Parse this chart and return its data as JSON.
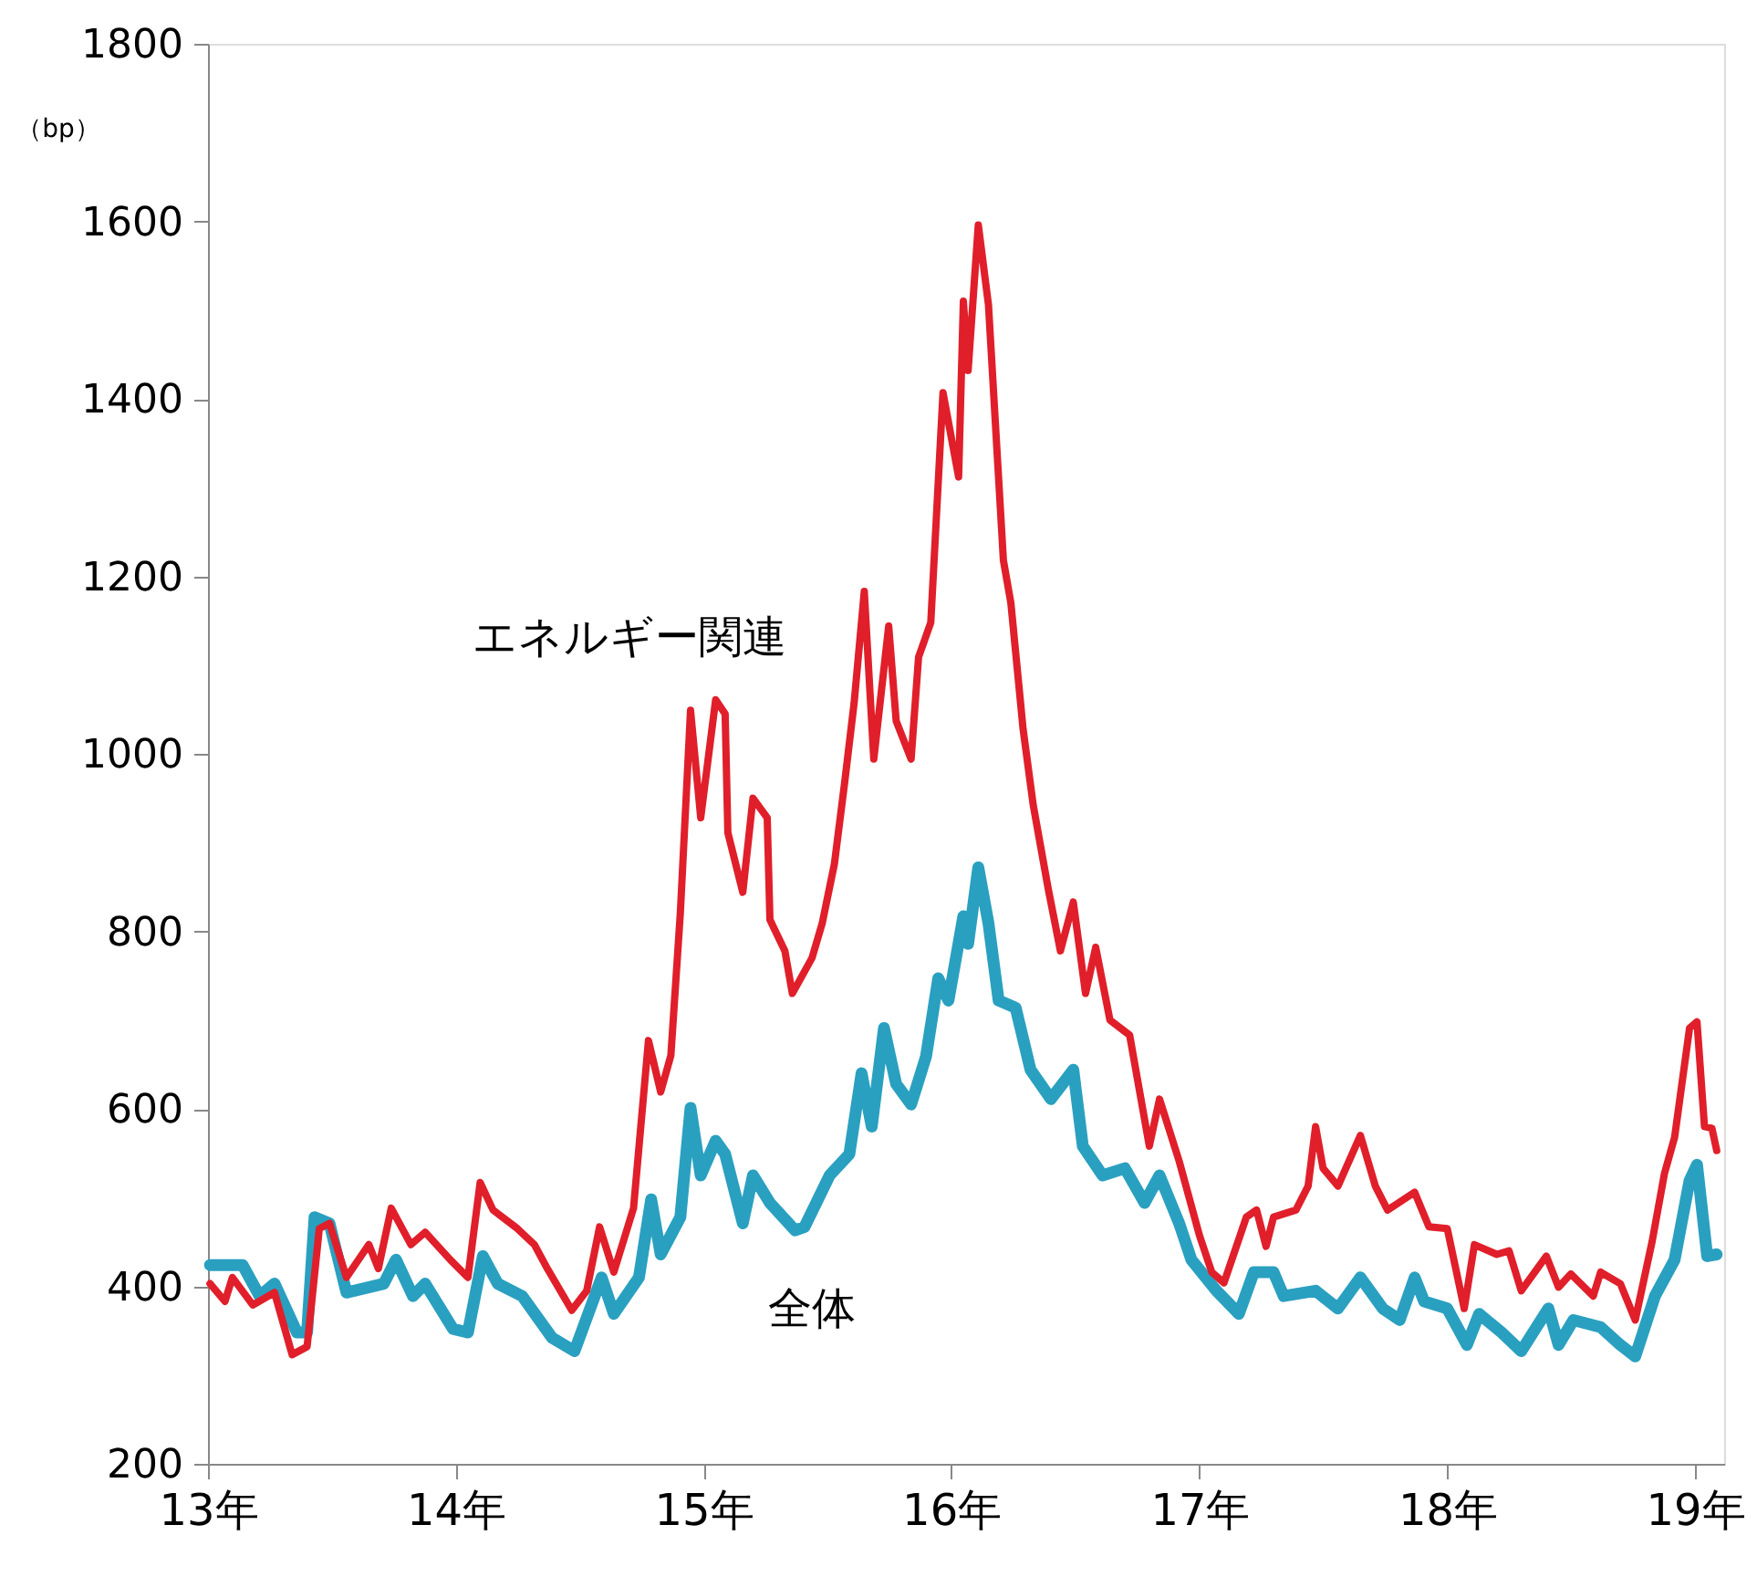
{
  "chart_data": {
    "type": "line",
    "ylabel": "（bp）",
    "xlim": [
      "2013-01-01",
      "2019-02-13"
    ],
    "ylim": [
      200,
      1800
    ],
    "xticks": [
      {
        "value": "2013-01-01",
        "label": "13年"
      },
      {
        "value": "2014-01-01",
        "label": "14年"
      },
      {
        "value": "2015-01-01",
        "label": "15年"
      },
      {
        "value": "2016-01-01",
        "label": "16年"
      },
      {
        "value": "2017-01-01",
        "label": "17年"
      },
      {
        "value": "2018-01-01",
        "label": "18年"
      },
      {
        "value": "2019-01-01",
        "label": "19年"
      }
    ],
    "yticks": [
      200,
      400,
      600,
      800,
      1000,
      1200,
      1400,
      1600,
      1800
    ],
    "grid": false,
    "legend": false,
    "marker": "none",
    "line_style": "solid",
    "series": [
      {
        "name": "全体",
        "color": "#2aa0c0",
        "x": [
          "2013-01-04",
          "2013-02-21",
          "2013-03-18",
          "2013-04-09",
          "2013-05-12",
          "2013-05-27",
          "2013-06-07",
          "2013-06-29",
          "2013-07-24",
          "2013-09-17",
          "2013-10-05",
          "2013-10-30",
          "2013-11-17",
          "2013-12-28",
          "2014-01-19",
          "2014-02-10",
          "2014-03-04",
          "2014-04-09",
          "2014-05-23",
          "2014-06-25",
          "2014-08-04",
          "2014-08-22",
          "2014-09-28",
          "2014-10-16",
          "2014-10-30",
          "2014-11-28",
          "2014-12-13",
          "2014-12-28",
          "2015-01-19",
          "2015-02-02",
          "2015-02-28",
          "2015-03-15",
          "2015-04-09",
          "2015-05-16",
          "2015-05-30",
          "2015-07-06",
          "2015-08-04",
          "2015-08-22",
          "2015-09-06",
          "2015-09-24",
          "2015-10-12",
          "2015-11-03",
          "2015-11-25",
          "2015-12-13",
          "2015-12-28",
          "2016-01-19",
          "2016-01-26",
          "2016-02-10",
          "2016-02-25",
          "2016-03-11",
          "2016-04-05",
          "2016-04-27",
          "2016-05-27",
          "2016-06-29",
          "2016-07-13",
          "2016-08-11",
          "2016-09-13",
          "2016-10-12",
          "2016-11-03",
          "2016-12-02",
          "2016-12-20",
          "2017-01-26",
          "2017-02-28",
          "2017-03-22",
          "2017-04-20",
          "2017-05-05",
          "2017-06-21",
          "2017-07-24",
          "2017-08-26",
          "2017-09-28",
          "2017-10-23",
          "2017-11-14",
          "2017-11-28",
          "2018-01-01",
          "2018-01-30",
          "2018-02-17",
          "2018-03-22",
          "2018-04-20",
          "2018-05-30",
          "2018-06-14",
          "2018-07-06",
          "2018-08-15",
          "2018-09-13",
          "2018-10-05",
          "2018-11-03",
          "2018-12-02",
          "2018-12-24",
          "2019-01-04",
          "2019-01-19",
          "2019-02-02"
        ],
        "values": [
          424,
          424,
          389,
          403,
          348,
          348,
          478,
          471,
          393,
          403,
          430,
          389,
          403,
          352,
          348,
          434,
          403,
          389,
          342,
          327,
          410,
          369,
          410,
          498,
          436,
          478,
          601,
          525,
          564,
          549,
          471,
          525,
          494,
          463,
          467,
          525,
          549,
          640,
          580,
          691,
          628,
          605,
          659,
          747,
          722,
          817,
          786,
          872,
          809,
          722,
          714,
          644,
          611,
          644,
          558,
          525,
          533,
          494,
          525,
          471,
          430,
          395,
          369,
          416,
          416,
          389,
          395,
          375,
          410,
          375,
          362,
          410,
          383,
          375,
          334,
          369,
          348,
          327,
          375,
          334,
          362,
          354,
          334,
          321,
          389,
          430,
          519,
          537,
          434,
          436
        ]
      },
      {
        "name": "エネルギー関連",
        "color": "#e01f2a",
        "x": [
          "2013-01-04",
          "2013-01-26",
          "2013-02-06",
          "2013-03-08",
          "2013-04-09",
          "2013-05-05",
          "2013-05-27",
          "2013-06-14",
          "2013-06-29",
          "2013-07-24",
          "2013-08-26",
          "2013-09-09",
          "2013-09-28",
          "2013-10-27",
          "2013-11-17",
          "2013-12-24",
          "2014-01-19",
          "2014-02-06",
          "2014-02-25",
          "2014-04-02",
          "2014-04-27",
          "2014-05-16",
          "2014-06-21",
          "2014-07-13",
          "2014-08-01",
          "2014-08-22",
          "2014-09-20",
          "2014-10-12",
          "2014-10-30",
          "2014-11-14",
          "2014-11-28",
          "2014-12-13",
          "2014-12-28",
          "2015-01-19",
          "2015-02-02",
          "2015-02-06",
          "2015-02-28",
          "2015-03-15",
          "2015-04-05",
          "2015-04-09",
          "2015-05-01",
          "2015-05-12",
          "2015-06-10",
          "2015-06-25",
          "2015-07-13",
          "2015-07-28",
          "2015-08-11",
          "2015-08-26",
          "2015-09-09",
          "2015-10-01",
          "2015-10-12",
          "2015-11-03",
          "2015-11-14",
          "2015-12-02",
          "2015-12-20",
          "2016-01-12",
          "2016-01-19",
          "2016-01-26",
          "2016-02-10",
          "2016-02-25",
          "2016-03-18",
          "2016-03-29",
          "2016-04-16",
          "2016-05-01",
          "2016-05-23",
          "2016-06-10",
          "2016-06-29",
          "2016-07-17",
          "2016-08-01",
          "2016-08-22",
          "2016-09-20",
          "2016-10-19",
          "2016-11-03",
          "2016-12-02",
          "2017-01-01",
          "2017-01-19",
          "2017-02-06",
          "2017-03-11",
          "2017-03-26",
          "2017-04-09",
          "2017-04-20",
          "2017-05-23",
          "2017-06-10",
          "2017-06-21",
          "2017-07-02",
          "2017-07-24",
          "2017-08-26",
          "2017-09-17",
          "2017-10-05",
          "2017-11-14",
          "2017-12-05",
          "2018-01-01",
          "2018-01-26",
          "2018-02-10",
          "2018-03-15",
          "2018-04-02",
          "2018-04-20",
          "2018-05-27",
          "2018-06-14",
          "2018-07-02",
          "2018-08-04",
          "2018-08-15",
          "2018-09-13",
          "2018-10-05",
          "2018-10-30",
          "2018-11-17",
          "2018-12-02",
          "2018-12-24",
          "2019-01-04",
          "2019-01-15",
          "2019-01-26",
          "2019-02-02"
        ],
        "values": [
          403,
          383,
          410,
          379,
          393,
          323,
          332,
          465,
          471,
          410,
          447,
          420,
          488,
          447,
          461,
          430,
          410,
          517,
          486,
          465,
          447,
          420,
          373,
          395,
          467,
          416,
          488,
          677,
          619,
          660,
          821,
          1049,
          928,
          1061,
          1045,
          911,
          844,
          950,
          928,
          813,
          778,
          730,
          770,
          809,
          876,
          967,
          1057,
          1183,
          994,
          1144,
          1037,
          994,
          1109,
          1148,
          1407,
          1312,
          1510,
          1432,
          1596,
          1506,
          1218,
          1170,
          1028,
          942,
          848,
          778,
          833,
          730,
          782,
          700,
          683,
          558,
          611,
          541,
          457,
          416,
          404,
          478,
          486,
          445,
          478,
          486,
          513,
          580,
          533,
          513,
          570,
          513,
          486,
          506,
          467,
          465,
          375,
          447,
          436,
          440,
          395,
          434,
          399,
          414,
          389,
          416,
          403,
          362,
          451,
          527,
          568,
          691,
          698,
          580,
          578,
          553
        ]
      }
    ]
  }
}
